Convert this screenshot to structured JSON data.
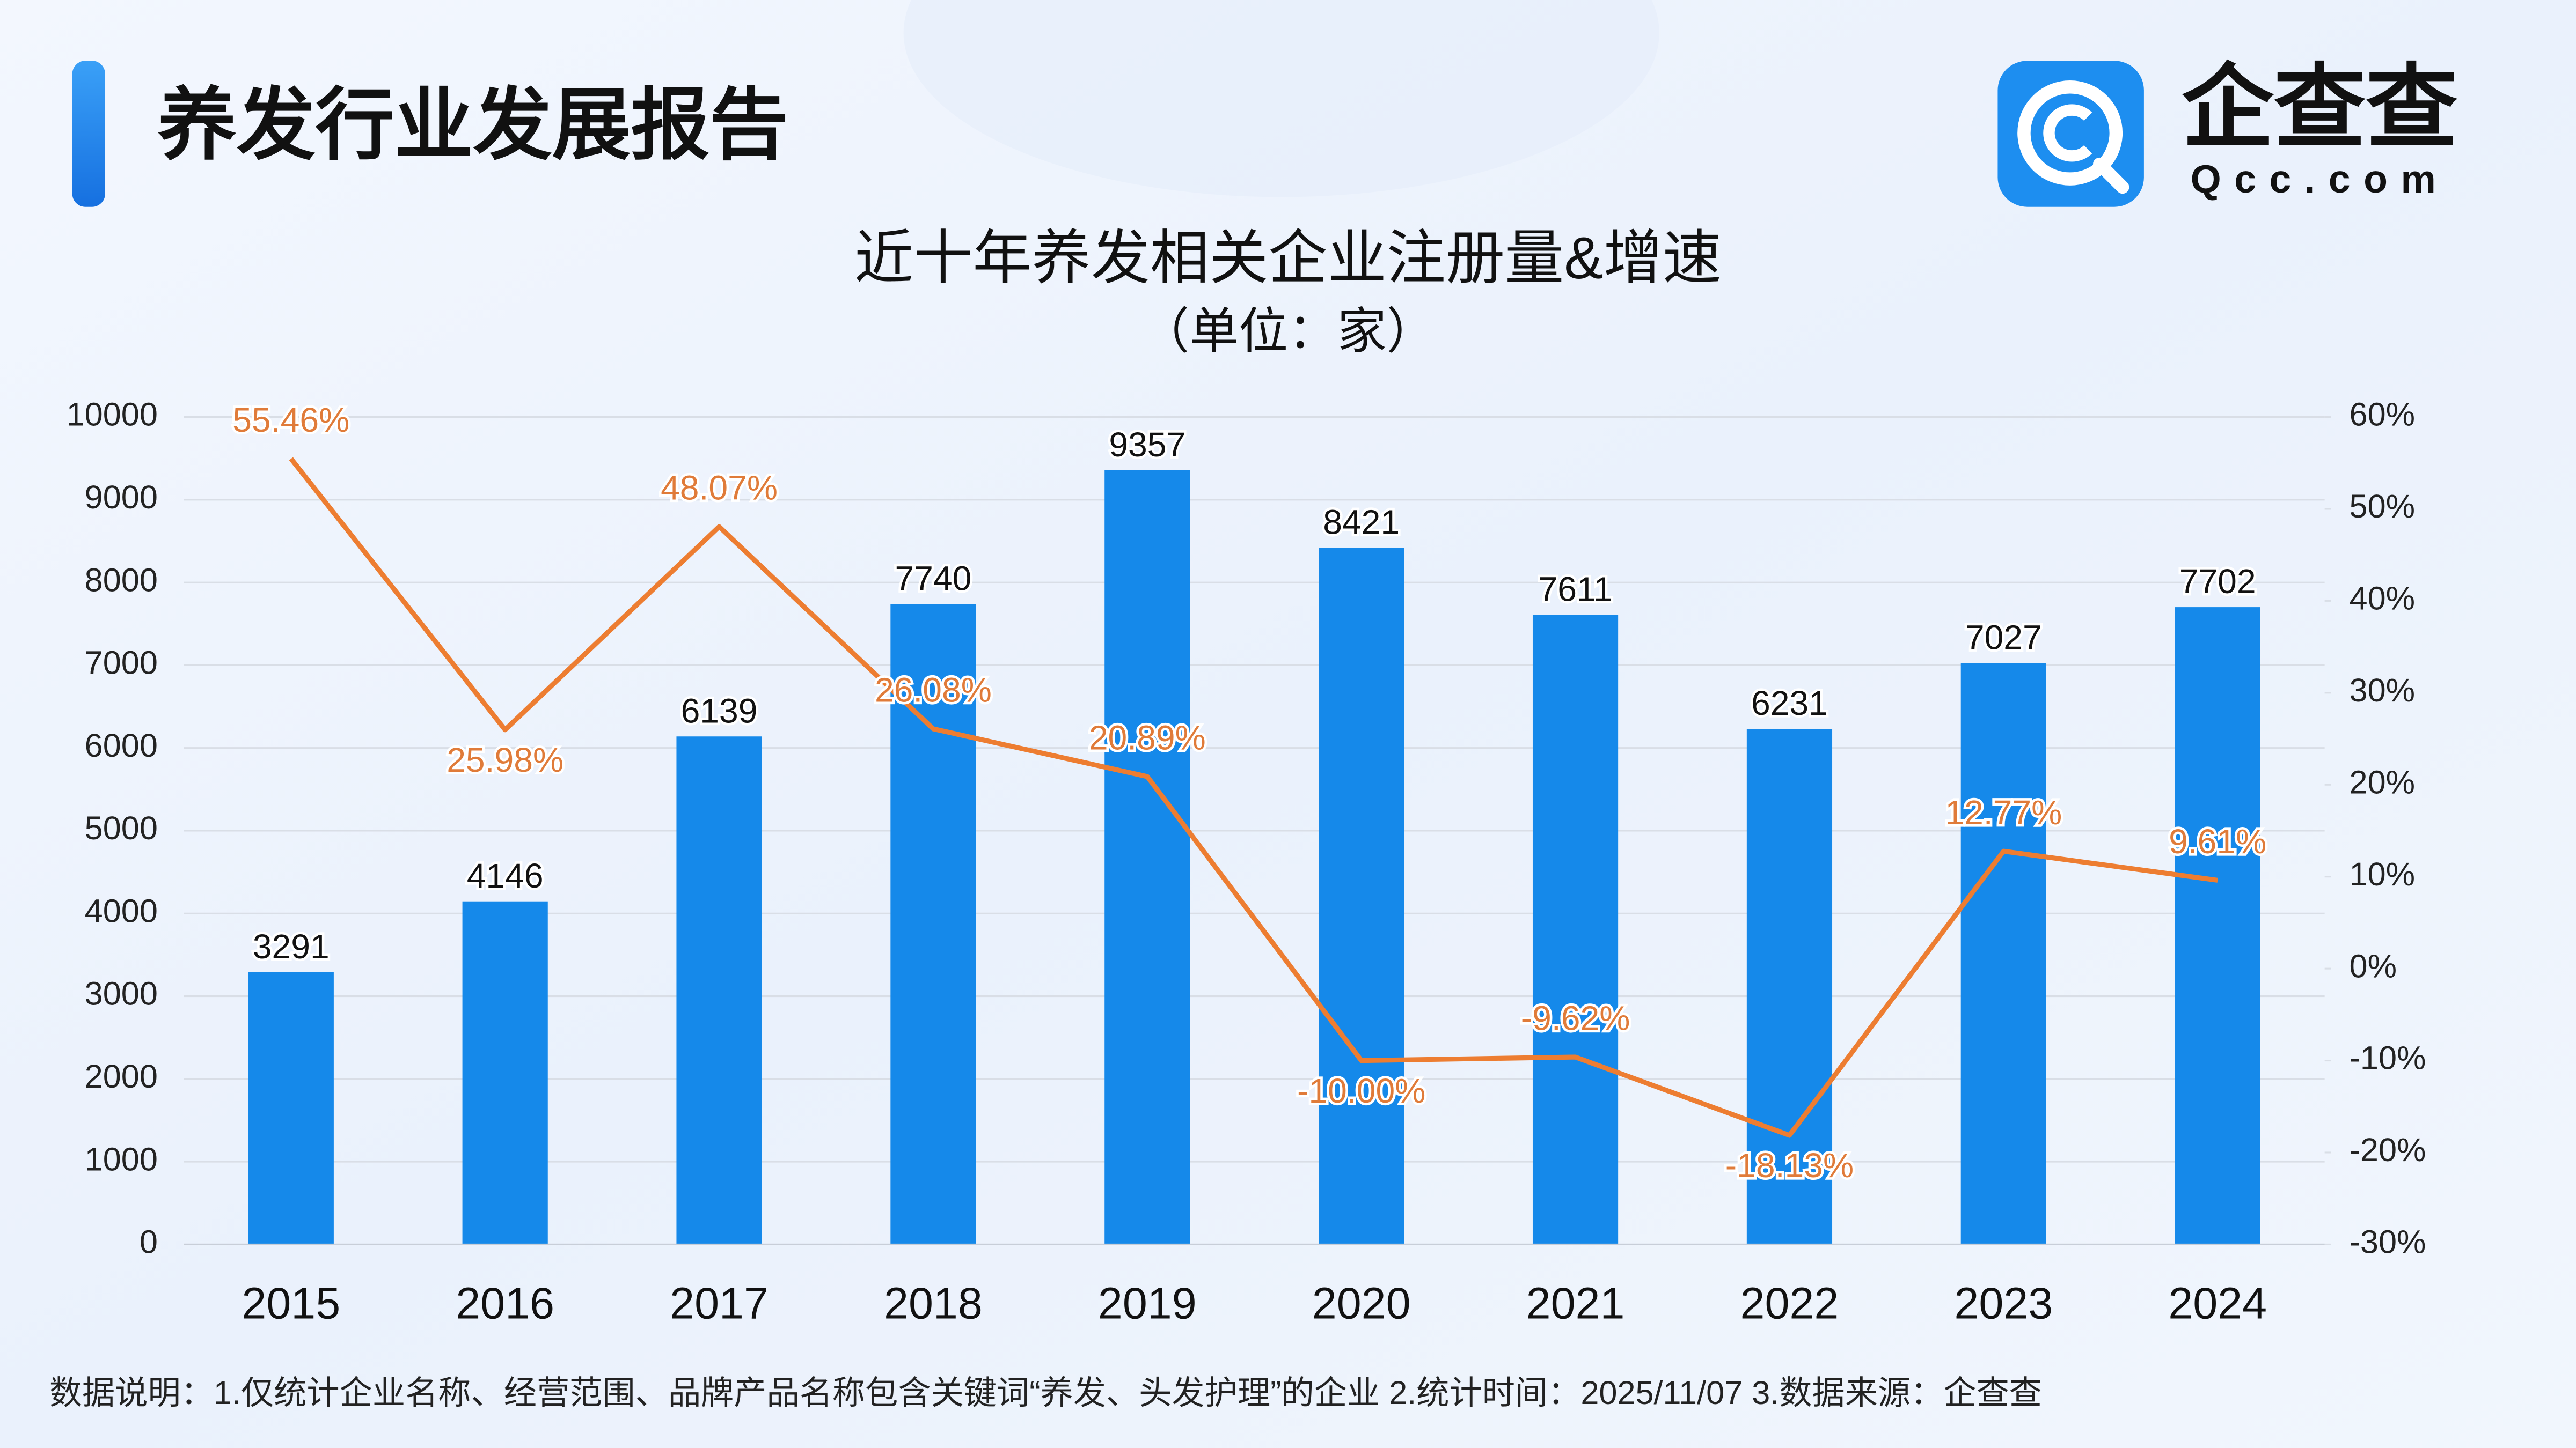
{
  "header": {
    "title": "养发行业发展报告",
    "logo_name": "企查查",
    "logo_url": "Qcc.com"
  },
  "chart_data": {
    "type": "bar-line",
    "title": "近十年养发相关企业注册量&增速",
    "subtitle": "（单位：家）",
    "categories": [
      "2015",
      "2016",
      "2017",
      "2018",
      "2019",
      "2020",
      "2021",
      "2022",
      "2023",
      "2024"
    ],
    "series": [
      {
        "type": "bar",
        "color": "#1589ea",
        "values": [
          3291,
          4146,
          6139,
          7740,
          9357,
          8421,
          7611,
          6231,
          7027,
          7702
        ]
      },
      {
        "type": "line",
        "axis": "y2",
        "color": "#ed7d31",
        "values": [
          55.46,
          25.98,
          48.07,
          26.08,
          20.89,
          -10.0,
          -9.62,
          -18.13,
          12.77,
          9.61
        ],
        "value_labels": [
          "55.46%",
          "25.98%",
          "48.07%",
          "26.08%",
          "20.89%",
          "-10.00%",
          "-9.62%",
          "-18.13%",
          "12.77%",
          "9.61%"
        ]
      }
    ],
    "ylim": [
      0,
      10000
    ],
    "yticks": [
      0,
      1000,
      2000,
      3000,
      4000,
      5000,
      6000,
      7000,
      8000,
      9000,
      10000
    ],
    "y2lim": [
      -30,
      60
    ],
    "y2ticks": [
      {
        "value": -30,
        "label": "-30%"
      },
      {
        "value": -20,
        "label": "-20%"
      },
      {
        "value": -10,
        "label": "-10%"
      },
      {
        "value": 0,
        "label": "0%"
      },
      {
        "value": 10,
        "label": "10%"
      },
      {
        "value": 20,
        "label": "20%"
      },
      {
        "value": 30,
        "label": "30%"
      },
      {
        "value": 40,
        "label": "40%"
      },
      {
        "value": 50,
        "label": "50%"
      },
      {
        "value": 60,
        "label": "60%"
      }
    ],
    "grid": true,
    "footnote": "数据说明：1.仅统计企业名称、经营范围、品牌产品名称包含关键词“养发、头发护理”的企业   2.统计时间：2025/11/07    3.数据来源：企查查"
  }
}
